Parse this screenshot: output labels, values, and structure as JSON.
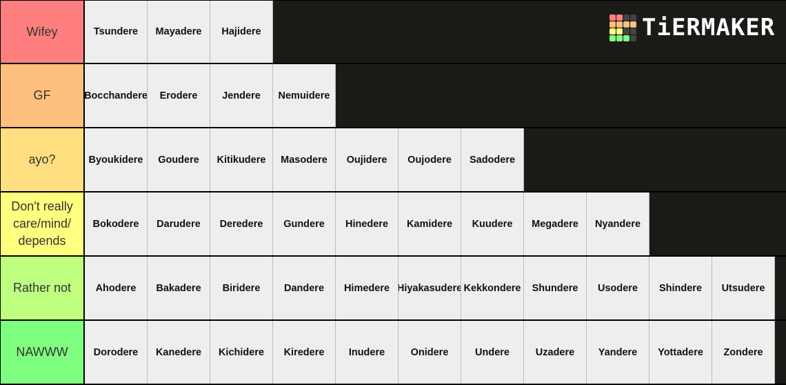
{
  "logo": {
    "text": "TiERMAKER",
    "grid_colors": [
      "#ff7f7f",
      "#ff7f7f",
      "#444444",
      "#444444",
      "#ffbf7f",
      "#ffbf7f",
      "#ffbf7f",
      "#ffbf7f",
      "#ffff7f",
      "#ffff7f",
      "#444444",
      "#444444",
      "#7fff7f",
      "#7fff7f",
      "#7fff7f",
      "#444444"
    ]
  },
  "tiers": [
    {
      "label": "Wifey",
      "color": "#ff7f7f",
      "items": [
        "Tsundere",
        "Mayadere",
        "Hajidere"
      ]
    },
    {
      "label": "GF",
      "color": "#ffbf7f",
      "items": [
        "Bocchandere",
        "Erodere",
        "Jendere",
        "Nemuidere"
      ]
    },
    {
      "label": "ayo?",
      "color": "#ffdf7f",
      "items": [
        "Byoukidere",
        "Goudere",
        "Kitikudere",
        "Masodere",
        "Oujidere",
        "Oujodere",
        "Sadodere"
      ]
    },
    {
      "label": "Don't really care/mind/ depends",
      "color": "#ffff7f",
      "items": [
        "Bokodere",
        "Darudere",
        "Deredere",
        "Gundere",
        "Hinedere",
        "Kamidere",
        "Kuudere",
        "Megadere",
        "Nyandere"
      ]
    },
    {
      "label": "Rather not",
      "color": "#bfff7f",
      "items": [
        "Ahodere",
        "Bakadere",
        "Biridere",
        "Dandere",
        "Himedere",
        "Hiyakasudere",
        "Kekkondere",
        "Shundere",
        "Usodere",
        "Shindere",
        "Utsudere"
      ]
    },
    {
      "label": "NAWWW",
      "color": "#7fff7f",
      "items": [
        "Dorodere",
        "Kanedere",
        "Kichidere",
        "Kiredere",
        "Inudere",
        "Onidere",
        "Undere",
        "Uzadere",
        "Yandere",
        "Yottadere",
        "Zondere"
      ]
    }
  ]
}
